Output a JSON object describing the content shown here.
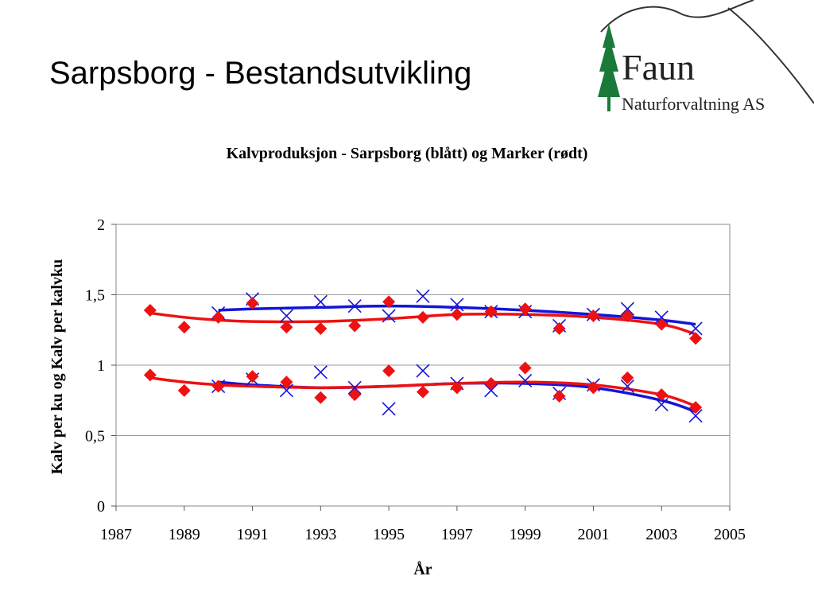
{
  "slide": {
    "title": "Sarpsborg - Bestandsutvikling"
  },
  "logo": {
    "brand": "Faun",
    "subtitle": "Naturforvaltning AS",
    "colors": {
      "tree": "#1a7a3a",
      "text": "#222222",
      "hill": "#333333"
    }
  },
  "chart_data": {
    "type": "scatter",
    "title": "Kalvproduksjon - Sarpsborg (blått) og Marker (rødt)",
    "xlabel": "År",
    "ylabel": "Kalv per ku og Kalv per kalvku",
    "xlim": [
      1987,
      2005
    ],
    "ylim": [
      0,
      2
    ],
    "x_ticks": [
      "1987",
      "1989",
      "1991",
      "1993",
      "1995",
      "1997",
      "1999",
      "2001",
      "2003",
      "2005"
    ],
    "y_ticks": [
      "0",
      "0,5",
      "1",
      "1,5",
      "2"
    ],
    "grid": "horizontal",
    "colors": {
      "blue": "#1414d8",
      "red": "#ee1111"
    },
    "series": [
      {
        "color": "blue",
        "marker": "x",
        "points": [
          [
            1990,
            1.37
          ],
          [
            1991,
            1.47
          ],
          [
            1992,
            1.35
          ],
          [
            1993,
            1.45
          ],
          [
            1994,
            1.42
          ],
          [
            1995,
            1.35
          ],
          [
            1996,
            1.49
          ],
          [
            1997,
            1.43
          ],
          [
            1998,
            1.38
          ],
          [
            1999,
            1.38
          ],
          [
            2000,
            1.28
          ],
          [
            2001,
            1.36
          ],
          [
            2002,
            1.4
          ],
          [
            2003,
            1.34
          ],
          [
            2004,
            1.26
          ]
        ]
      },
      {
        "color": "blue",
        "marker": "x",
        "points": [
          [
            1990,
            0.85
          ],
          [
            1991,
            0.9
          ],
          [
            1992,
            0.82
          ],
          [
            1993,
            0.95
          ],
          [
            1994,
            0.84
          ],
          [
            1995,
            0.69
          ],
          [
            1996,
            0.96
          ],
          [
            1997,
            0.87
          ],
          [
            1998,
            0.82
          ],
          [
            1999,
            0.89
          ],
          [
            2000,
            0.8
          ],
          [
            2001,
            0.86
          ],
          [
            2002,
            0.85
          ],
          [
            2003,
            0.72
          ],
          [
            2004,
            0.64
          ]
        ]
      },
      {
        "color": "red",
        "marker": "diamond",
        "points": [
          [
            1988,
            1.39
          ],
          [
            1989,
            1.27
          ],
          [
            1990,
            1.34
          ],
          [
            1991,
            1.44
          ],
          [
            1992,
            1.27
          ],
          [
            1993,
            1.26
          ],
          [
            1994,
            1.28
          ],
          [
            1995,
            1.45
          ],
          [
            1996,
            1.34
          ],
          [
            1997,
            1.36
          ],
          [
            1998,
            1.38
          ],
          [
            1999,
            1.4
          ],
          [
            2000,
            1.26
          ],
          [
            2001,
            1.35
          ],
          [
            2002,
            1.35
          ],
          [
            2003,
            1.29
          ],
          [
            2004,
            1.19
          ]
        ]
      },
      {
        "color": "red",
        "marker": "diamond",
        "points": [
          [
            1988,
            0.93
          ],
          [
            1989,
            0.82
          ],
          [
            1990,
            0.85
          ],
          [
            1991,
            0.92
          ],
          [
            1992,
            0.88
          ],
          [
            1993,
            0.77
          ],
          [
            1994,
            0.79
          ],
          [
            1995,
            0.96
          ],
          [
            1996,
            0.81
          ],
          [
            1997,
            0.84
          ],
          [
            1998,
            0.87
          ],
          [
            1999,
            0.98
          ],
          [
            2000,
            0.78
          ],
          [
            2001,
            0.84
          ],
          [
            2002,
            0.91
          ],
          [
            2003,
            0.79
          ],
          [
            2004,
            0.7
          ]
        ]
      }
    ],
    "trendlines": [
      {
        "color": "blue",
        "points": [
          [
            1990,
            1.39
          ],
          [
            1991,
            1.4
          ],
          [
            1993,
            1.41
          ],
          [
            1995,
            1.42
          ],
          [
            1997,
            1.41
          ],
          [
            1999,
            1.39
          ],
          [
            2001,
            1.36
          ],
          [
            2003,
            1.32
          ],
          [
            2004,
            1.29
          ]
        ]
      },
      {
        "color": "blue",
        "points": [
          [
            1990,
            0.88
          ],
          [
            1991,
            0.86
          ],
          [
            1993,
            0.84
          ],
          [
            1995,
            0.85
          ],
          [
            1997,
            0.87
          ],
          [
            1999,
            0.87
          ],
          [
            2001,
            0.84
          ],
          [
            2003,
            0.75
          ],
          [
            2004,
            0.67
          ]
        ]
      },
      {
        "color": "red",
        "points": [
          [
            1988,
            1.37
          ],
          [
            1989,
            1.34
          ],
          [
            1990,
            1.32
          ],
          [
            1991,
            1.31
          ],
          [
            1993,
            1.31
          ],
          [
            1995,
            1.33
          ],
          [
            1997,
            1.36
          ],
          [
            1999,
            1.36
          ],
          [
            2001,
            1.34
          ],
          [
            2003,
            1.29
          ],
          [
            2004,
            1.22
          ]
        ]
      },
      {
        "color": "red",
        "points": [
          [
            1988,
            0.91
          ],
          [
            1989,
            0.88
          ],
          [
            1990,
            0.86
          ],
          [
            1991,
            0.85
          ],
          [
            1993,
            0.84
          ],
          [
            1995,
            0.85
          ],
          [
            1997,
            0.87
          ],
          [
            1999,
            0.88
          ],
          [
            2001,
            0.86
          ],
          [
            2003,
            0.79
          ],
          [
            2004,
            0.71
          ]
        ]
      }
    ]
  }
}
